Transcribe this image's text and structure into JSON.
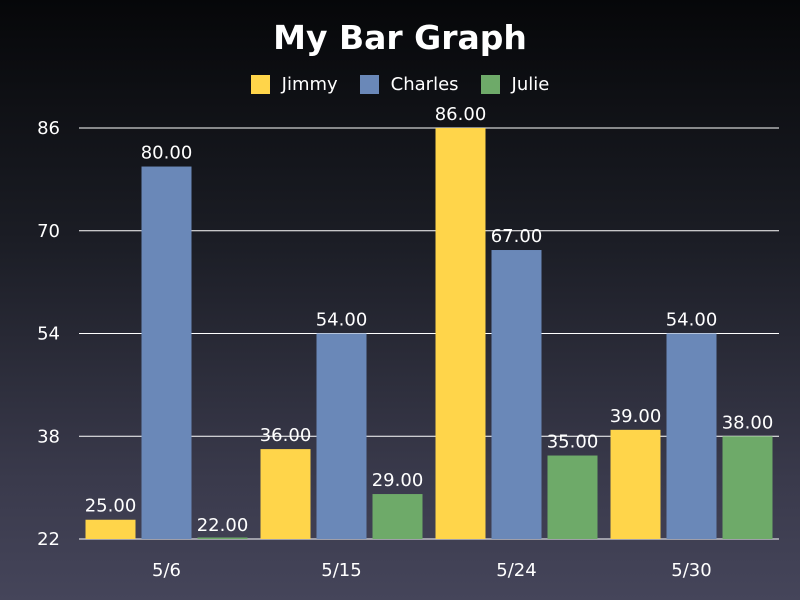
{
  "chart_data": {
    "type": "bar",
    "title": "My Bar Graph",
    "xlabel": "",
    "ylabel": "",
    "categories": [
      "5/6",
      "5/15",
      "5/24",
      "5/30"
    ],
    "series": [
      {
        "name": "Jimmy",
        "color": "#ffd54a",
        "values": [
          25.0,
          36.0,
          86.0,
          39.0
        ],
        "labels": [
          "25.00",
          "36.00",
          "86.00",
          "39.00"
        ]
      },
      {
        "name": "Charles",
        "color": "#6a88b8",
        "values": [
          80.0,
          54.0,
          67.0,
          54.0
        ],
        "labels": [
          "80.00",
          "54.00",
          "67.00",
          "54.00"
        ]
      },
      {
        "name": "Julie",
        "color": "#6eaa69",
        "values": [
          22.0,
          29.0,
          35.0,
          38.0
        ],
        "labels": [
          "22.00",
          "29.00",
          "35.00",
          "38.00"
        ]
      }
    ],
    "ylim": [
      22,
      86
    ],
    "yticks": [
      "22",
      "38",
      "54",
      "70",
      "86"
    ],
    "grid": true,
    "legend_position": "top-center"
  }
}
